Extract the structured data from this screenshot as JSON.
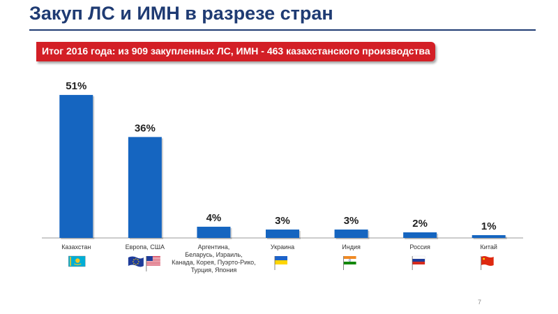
{
  "slide": {
    "title": "Закуп ЛС и ИМН в разрезе стран",
    "banner": "Итог  2016 года:  из 909 закупленных ЛС, ИМН - 463 казахстанского производства",
    "page_number": "7"
  },
  "chart_data": {
    "type": "bar",
    "title": "",
    "xlabel": "",
    "ylabel": "",
    "ylim": [
      0,
      55
    ],
    "grid": false,
    "bar_color": "#1565c0",
    "categories": [
      [
        "Казахстан"
      ],
      [
        "Европа, США"
      ],
      [
        "Аргентина,",
        "Беларусь, Израиль,",
        "Канада, Корея, Пуэрто-Рико,",
        "Турция, Япония"
      ],
      [
        "Украина"
      ],
      [
        "Индия"
      ],
      [
        "Россия"
      ],
      [
        "Китай"
      ]
    ],
    "values": [
      51,
      36,
      4,
      3,
      3,
      2,
      1
    ],
    "value_labels": [
      "51%",
      "36%",
      "4%",
      "3%",
      "3%",
      "2%",
      "1%"
    ],
    "flags": [
      [
        "kazakhstan-flag-icon"
      ],
      [
        "eu-flag-icon",
        "usa-flag-icon"
      ],
      [],
      [
        "ukraine-flag-icon"
      ],
      [
        "india-flag-icon"
      ],
      [
        "russia-flag-icon"
      ],
      [
        "china-flag-icon"
      ]
    ]
  }
}
